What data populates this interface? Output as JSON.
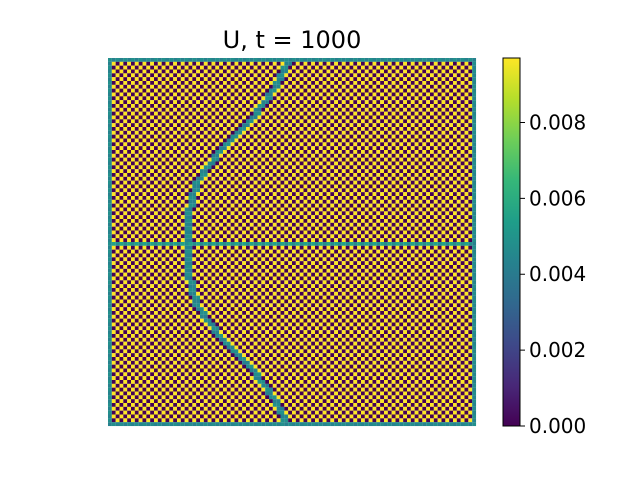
{
  "chart_data": {
    "type": "heatmap",
    "title": "U, t = 1000",
    "xlabel": "",
    "ylabel": "",
    "axes_visible": false,
    "grid": false,
    "colormap": "viridis",
    "pattern": "checkerboard",
    "grid_size": [
      96,
      96
    ],
    "checker_values": [
      0.0,
      0.0097
    ],
    "band_value": 0.0048,
    "border_value": 0.0048,
    "horizontal_band_row": 48,
    "curve_columns": {
      "note_rows": [
        0,
        8,
        16,
        24,
        32,
        40,
        48,
        56,
        64,
        72,
        80,
        88,
        95
      ],
      "cols": [
        46,
        42,
        36,
        28,
        22,
        20,
        20,
        20,
        22,
        28,
        36,
        42,
        46
      ]
    },
    "colorbar": {
      "range": [
        0.0,
        0.0097
      ],
      "ticks": [
        0.0,
        0.002,
        0.004,
        0.006,
        0.008
      ],
      "tick_labels": [
        "0.000",
        "0.002",
        "0.004",
        "0.006",
        "0.008"
      ]
    }
  },
  "colors": {
    "viridis_stops": [
      "#440154",
      "#482878",
      "#3e4989",
      "#31688e",
      "#26828e",
      "#1f9e89",
      "#35b779",
      "#6ece58",
      "#b5de2b",
      "#fde725"
    ]
  }
}
